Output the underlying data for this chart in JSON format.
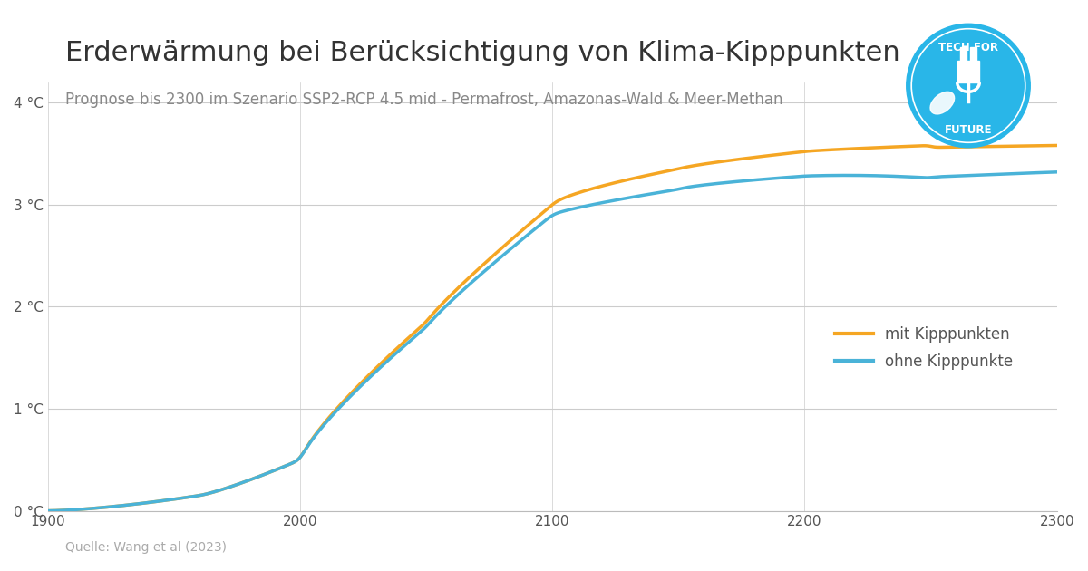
{
  "title": "Erderwärmung bei Berücksichtigung von Klima-Kipppunkten",
  "subtitle": "Prognose bis 2300 im Szenario SSP2-RCP 4.5 mid - Permafrost, Amazonas-Wald & Meer-Methan",
  "source": "Quelle: Wang et al (2023)",
  "xlabel": "",
  "ylabel": "",
  "xlim": [
    1900,
    2300
  ],
  "ylim": [
    0,
    4.2
  ],
  "yticks": [
    0,
    1,
    2,
    3,
    4
  ],
  "ytick_labels": [
    "0 °C",
    "1 °C",
    "2 °C",
    "3 °C",
    "4 °C"
  ],
  "xticks": [
    1900,
    2000,
    2100,
    2200,
    2300
  ],
  "bg_color": "#ffffff",
  "grid_color": "#cccccc",
  "line_mit_color": "#f5a623",
  "line_ohne_color": "#4ab3d8",
  "line_width": 2.5,
  "legend_mit": "mit Kipppunkten",
  "legend_ohne": "ohne Kipppunkte",
  "title_fontsize": 22,
  "subtitle_fontsize": 12,
  "source_fontsize": 10,
  "title_color": "#333333",
  "subtitle_color": "#888888",
  "source_color": "#aaaaaa",
  "logo_color": "#29b6e8"
}
